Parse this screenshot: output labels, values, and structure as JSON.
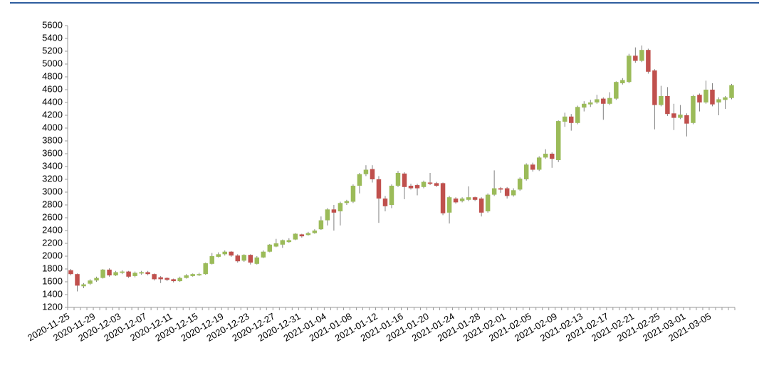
{
  "chart_data": {
    "type": "candlestick",
    "categories": [
      "2020-11-25",
      null,
      null,
      null,
      "2020-11-29",
      null,
      null,
      null,
      "2020-12-03",
      null,
      null,
      null,
      "2020-12-07",
      null,
      null,
      null,
      "2020-12-11",
      null,
      null,
      null,
      "2020-12-15",
      null,
      null,
      null,
      "2020-12-19",
      null,
      null,
      null,
      "2020-12-23",
      null,
      null,
      null,
      "2020-12-27",
      null,
      null,
      null,
      "2020-12-31",
      null,
      null,
      null,
      "2021-01-04",
      null,
      null,
      null,
      "2021-01-08",
      null,
      null,
      null,
      "2021-01-12",
      null,
      null,
      null,
      "2021-01-16",
      null,
      null,
      null,
      "2021-01-20",
      null,
      null,
      null,
      "2021-01-24",
      null,
      null,
      null,
      "2021-01-28",
      null,
      null,
      null,
      "2021-02-01",
      null,
      null,
      null,
      "2021-02-05",
      null,
      null,
      null,
      "2021-02-09",
      null,
      null,
      null,
      "2021-02-13",
      null,
      null,
      null,
      "2021-02-17",
      null,
      null,
      null,
      "2021-02-21",
      null,
      null,
      null,
      "2021-02-25",
      null,
      null,
      null,
      "2021-03-01",
      null,
      null,
      null,
      "2021-03-05",
      null,
      null,
      null
    ],
    "open": [
      1780,
      1720,
      1530,
      1570,
      1620,
      1660,
      1790,
      1700,
      1740,
      1760,
      1690,
      1730,
      1750,
      1720,
      1670,
      1660,
      1640,
      1610,
      1660,
      1690,
      1700,
      1720,
      1880,
      1990,
      2030,
      2070,
      2010,
      1930,
      2020,
      1880,
      1980,
      2070,
      2150,
      2180,
      2220,
      2260,
      2340,
      2330,
      2360,
      2420,
      2560,
      2730,
      2700,
      2830,
      2850,
      3100,
      3280,
      3360,
      3200,
      2900,
      2800,
      3100,
      3290,
      3100,
      3110,
      3080,
      3150,
      3140,
      3140,
      2680,
      2900,
      2860,
      2880,
      2920,
      2900,
      2700,
      2960,
      3060,
      3060,
      2950,
      3040,
      3200,
      3430,
      3350,
      3540,
      3600,
      3500,
      4100,
      4180,
      4080,
      4320,
      4370,
      4400,
      4460,
      4380,
      4460,
      4700,
      4720,
      5130,
      5050,
      5220,
      4900,
      4360,
      4500,
      4230,
      4160,
      4200,
      4080,
      4520,
      4400,
      4600,
      4400,
      4440,
      4470
    ],
    "high": [
      1800,
      1730,
      1580,
      1640,
      1680,
      1800,
      1810,
      1770,
      1780,
      1770,
      1760,
      1770,
      1770,
      1730,
      1690,
      1670,
      1650,
      1680,
      1720,
      1730,
      1740,
      1900,
      2050,
      2060,
      2090,
      2080,
      2030,
      2030,
      2030,
      2000,
      2090,
      2190,
      2270,
      2260,
      2280,
      2360,
      2350,
      2380,
      2420,
      2620,
      2750,
      2800,
      2850,
      2880,
      3120,
      3300,
      3420,
      3420,
      3250,
      2940,
      3120,
      3330,
      3310,
      3130,
      3130,
      3180,
      3300,
      3160,
      3150,
      2940,
      2920,
      2920,
      3090,
      2930,
      2920,
      2980,
      3340,
      3080,
      3080,
      3060,
      3230,
      3450,
      3460,
      3560,
      3670,
      3620,
      4120,
      4240,
      4220,
      4350,
      4420,
      4440,
      4520,
      4480,
      4560,
      4730,
      4780,
      5160,
      5260,
      5290,
      5240,
      4920,
      4660,
      4640,
      4380,
      4360,
      4230,
      4520,
      4540,
      4740,
      4700,
      4480,
      4500,
      4690
    ],
    "low": [
      1700,
      1450,
      1500,
      1550,
      1600,
      1650,
      1680,
      1690,
      1720,
      1660,
      1670,
      1710,
      1700,
      1620,
      1580,
      1610,
      1590,
      1600,
      1650,
      1680,
      1690,
      1710,
      1870,
      1980,
      2010,
      1990,
      1900,
      1910,
      1870,
      1870,
      1970,
      2060,
      2140,
      2130,
      2210,
      2250,
      2290,
      2320,
      2350,
      2410,
      2480,
      2400,
      2480,
      2800,
      2830,
      2980,
      3250,
      3150,
      2520,
      2700,
      2750,
      3080,
      2890,
      3040,
      2950,
      3060,
      3110,
      3080,
      2640,
      2510,
      2820,
      2840,
      2860,
      2860,
      2620,
      2680,
      2940,
      2990,
      2900,
      2930,
      3020,
      3180,
      3320,
      3330,
      3520,
      3380,
      3470,
      4020,
      3960,
      4060,
      4260,
      4330,
      4380,
      4130,
      4360,
      4440,
      4680,
      4700,
      5020,
      5030,
      4850,
      3980,
      4340,
      4190,
      3970,
      4140,
      3870,
      4060,
      4260,
      4380,
      4340,
      4200,
      4300,
      4450
    ],
    "close": [
      1720,
      1540,
      1560,
      1620,
      1660,
      1790,
      1700,
      1750,
      1760,
      1680,
      1740,
      1750,
      1720,
      1640,
      1640,
      1630,
      1610,
      1660,
      1700,
      1720,
      1720,
      1890,
      2000,
      2030,
      2070,
      2010,
      1920,
      2020,
      1900,
      1980,
      2070,
      2180,
      2200,
      2250,
      2250,
      2350,
      2310,
      2360,
      2400,
      2560,
      2730,
      2680,
      2830,
      2860,
      3100,
      3280,
      3350,
      3200,
      2900,
      2780,
      3100,
      3300,
      3080,
      3060,
      3060,
      3160,
      3130,
      3100,
      2670,
      2920,
      2840,
      2900,
      2920,
      2880,
      2680,
      2960,
      3060,
      3040,
      2940,
      3030,
      3210,
      3430,
      3350,
      3540,
      3600,
      3520,
      4110,
      4180,
      4080,
      4330,
      4380,
      4400,
      4450,
      4380,
      4470,
      4720,
      4750,
      5130,
      5050,
      5220,
      4880,
      4360,
      4500,
      4220,
      4160,
      4210,
      4070,
      4500,
      4400,
      4600,
      4370,
      4450,
      4480,
      4670
    ],
    "up_color": "#9bbb59",
    "down_color": "#c0504d",
    "wick_color": "#808080",
    "ylim": [
      1200,
      5600
    ],
    "yticks": [
      1200,
      1400,
      1600,
      1800,
      2000,
      2200,
      2400,
      2600,
      2800,
      3000,
      3200,
      3400,
      3600,
      3800,
      4000,
      4200,
      4400,
      4600,
      4800,
      5000,
      5200,
      5400,
      5600
    ]
  }
}
